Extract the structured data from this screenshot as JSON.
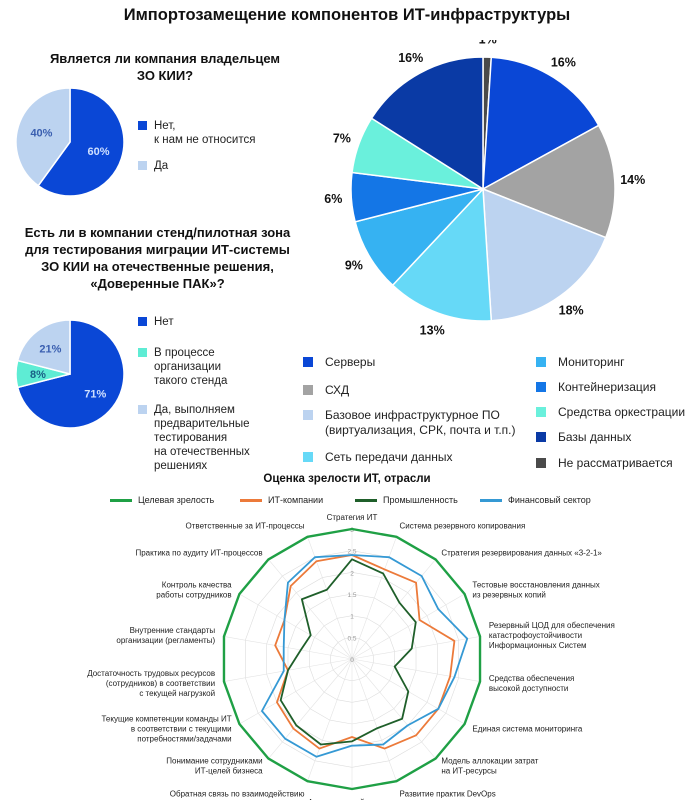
{
  "title": "Импортозамещение компонентов ИТ-инфраструктуры",
  "q1": {
    "title": "Является ли компания владельцем\nЗО КИИ?",
    "legend": [
      {
        "label": "Нет,\nк нам не относится",
        "color": "#0a47d6"
      },
      {
        "label": "Да",
        "color": "#bcd3f0"
      }
    ]
  },
  "q2": {
    "title": "Есть ли в компании стенд/пилотная зона\nдля тестирования миграции ИТ-системы\nЗО КИИ на отечественные решения,\n«Доверенные ПАК»?",
    "legend": [
      {
        "label": "Нет",
        "color": "#0a47d6"
      },
      {
        "label": "В процессе\nорганизации\nтакого стенда",
        "color": "#5eecd4"
      },
      {
        "label": "Да, выполняем\nпредварительные\nтестирования\nна отечественных\nрешениях",
        "color": "#bcd3f0"
      }
    ]
  },
  "main_legend": {
    "left": [
      {
        "label": "Серверы",
        "color": "#0a47d6"
      },
      {
        "label": "СХД",
        "color": "#a3a3a3"
      },
      {
        "label": "Базовое инфраструктурное ПО\n(виртуализация, СРК, почта и т.п.)",
        "color": "#bcd3f0"
      },
      {
        "label": "Сеть передачи данных",
        "color": "#66d9f7"
      }
    ],
    "right": [
      {
        "label": "Мониторинг",
        "color": "#36b2f2"
      },
      {
        "label": "Контейнеризация",
        "color": "#1476e6"
      },
      {
        "label": "Средства оркестрации",
        "color": "#6af0dc"
      },
      {
        "label": "Базы данных",
        "color": "#0a3aa5"
      },
      {
        "label": "Не рассматривается",
        "color": "#4a4a4a"
      }
    ]
  },
  "radar": {
    "title": "Оценка зрелости ИТ, отрасли",
    "legend": [
      {
        "label": "Целевая зрелость",
        "color": "#1fa045"
      },
      {
        "label": "ИТ-компании",
        "color": "#ec7a3a"
      },
      {
        "label": "Промышленность",
        "color": "#1f5f2a"
      },
      {
        "label": "Финансовый сектор",
        "color": "#3599d4"
      }
    ]
  },
  "chart_data": [
    {
      "type": "pie",
      "title": "Является ли компания владельцем ЗО КИИ?",
      "labels": [
        "Нет, к нам не относится",
        "Да"
      ],
      "values": [
        60,
        40
      ],
      "value_labels": [
        "60%",
        "40%"
      ],
      "colors": [
        "#0a47d6",
        "#bcd3f0"
      ]
    },
    {
      "type": "pie",
      "title": "Есть ли в компании стенд/пилотная зона для тестирования миграции ИТ-системы ЗО КИИ на отечественные решения, «Доверенные ПАК»?",
      "labels": [
        "Нет",
        "В процессе организации такого стенда",
        "Да, выполняем предварительные тестирования на отечественных решениях"
      ],
      "values": [
        71,
        8,
        21
      ],
      "value_labels": [
        "71%",
        "8%",
        "21%"
      ],
      "colors": [
        "#0a47d6",
        "#5eecd4",
        "#bcd3f0"
      ]
    },
    {
      "type": "pie",
      "title": "Импортозамещение компонентов ИТ-инфраструктуры",
      "labels": [
        "Не рассматривается",
        "Серверы",
        "СХД",
        "Базовое инфраструктурное ПО (виртуализация, СРК, почта и т.п.)",
        "Сеть передачи данных",
        "Мониторинг",
        "Контейнеризация",
        "Средства оркестрации",
        "Базы данных"
      ],
      "values": [
        1,
        16,
        14,
        18,
        13,
        9,
        6,
        7,
        16
      ],
      "value_labels": [
        "1%",
        "16%",
        "14%",
        "18%",
        "13%",
        "9%",
        "6%",
        "7%",
        "16%"
      ],
      "colors": [
        "#4a4a4a",
        "#0a47d6",
        "#a3a3a3",
        "#bcd3f0",
        "#66d9f7",
        "#36b2f2",
        "#1476e6",
        "#6af0dc",
        "#0a3aa5"
      ]
    },
    {
      "type": "radar",
      "title": "Оценка зрелости ИТ, отрасли",
      "rmax": 3,
      "ticks": [
        "0",
        "0.5",
        "1",
        "1.5",
        "2",
        "2.5",
        "3"
      ],
      "axes": [
        "Стратегия ИТ",
        "Система резервного копирования",
        "Стратегия резервирования данных «3-2-1»",
        "Тестовые восстановления данных\nиз резервных копий",
        "Резервный ЦОД для обеспечения\nкатастрофоустойчивости\nИнформационных Систем",
        "Средства обеспечения\nвысокой доступности",
        "Единая система мониторинга",
        "Модель аллокации затрат\nна ИТ-ресурсы",
        "Развитие практик DevOps",
        "Архитектурный комитет",
        "Обратная связь по взаимодействию\nбизнеса и ИТ",
        "Понимание сотрудниками\nИТ-целей бизнеса",
        "Текущие компетенции команды ИТ\nв соответствии с текущими\nпотребностями/задачами",
        "Достаточность трудовых ресурсов\n(сотрудников) в соответствии\nс текущей нагрузкой",
        "Внутренние стандарты\nорганизации (регламенты)",
        "Контроль качества\nработы сотрудников",
        "Практика по аудиту ИТ-процессов",
        "Ответственные за ИТ-процессы"
      ],
      "series": [
        {
          "name": "Целевая зрелость",
          "values": [
            3,
            3,
            3,
            3,
            3,
            3,
            3,
            3,
            3,
            3,
            3,
            3,
            3,
            3,
            3,
            3,
            3,
            3
          ]
        },
        {
          "name": "ИТ-компании",
          "values": [
            2.4,
            2.2,
            2.3,
            1.8,
            2.4,
            2.3,
            2.3,
            2.3,
            2.2,
            1.8,
            2.2,
            2.1,
            2.0,
            1.5,
            1.8,
            1.8,
            2.2,
            2.4
          ]
        },
        {
          "name": "Промышленность",
          "values": [
            2.3,
            2.1,
            1.7,
            1.7,
            1.4,
            1.0,
            1.5,
            1.8,
            1.7,
            1.9,
            2.1,
            2.0,
            1.9,
            1.5,
            1.2,
            1.1,
            1.8,
            1.7
          ]
        },
        {
          "name": "Финансовый сектор",
          "values": [
            2.4,
            2.5,
            2.5,
            2.3,
            2.7,
            2.4,
            2.3,
            2.0,
            2.1,
            2.0,
            2.4,
            2.4,
            2.4,
            1.6,
            1.6,
            1.8,
            2.3,
            2.5
          ]
        }
      ]
    }
  ]
}
